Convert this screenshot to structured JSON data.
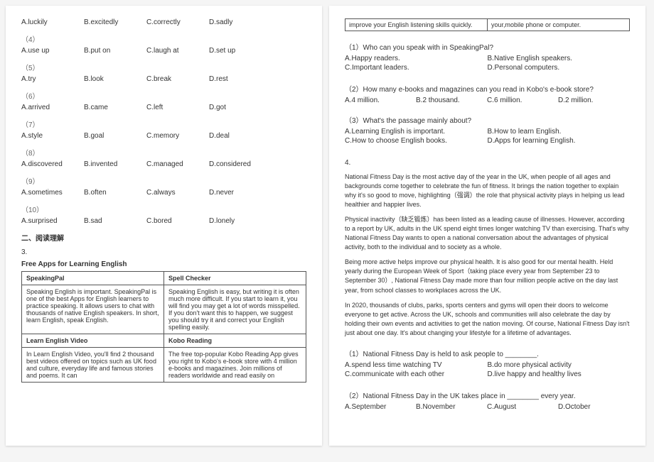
{
  "left": {
    "mcq": [
      {
        "n": "",
        "opts": [
          "A.luckily",
          "B.excitedly",
          "C.correctly",
          "D.sadly"
        ]
      },
      {
        "n": "（4）",
        "opts": [
          "A.use up",
          "B.put on",
          "C.laugh at",
          "D.set up"
        ]
      },
      {
        "n": "（5）",
        "opts": [
          "A.try",
          "B.look",
          "C.break",
          "D.rest"
        ]
      },
      {
        "n": "（6）",
        "opts": [
          "A.arrived",
          "B.came",
          "C.left",
          "D.got"
        ]
      },
      {
        "n": "（7）",
        "opts": [
          "A.style",
          "B.goal",
          "C.memory",
          "D.deal"
        ]
      },
      {
        "n": "（8）",
        "opts": [
          "A.discovered",
          "B.invented",
          "C.managed",
          "D.considered"
        ]
      },
      {
        "n": "（9）",
        "opts": [
          "A.sometimes",
          "B.often",
          "C.always",
          "D.never"
        ]
      },
      {
        "n": "（10）",
        "opts": [
          "A.surprised",
          "B.sad",
          "C.bored",
          "D.lonely"
        ]
      }
    ],
    "section2": "二、阅读理解",
    "q3": "3.",
    "appsTitle": "Free Apps for Learning English",
    "apps": [
      {
        "l_h": "SpeakingPal",
        "l_b": "Speaking English is important. SpeakingPal is one of the best Apps for English learners to practice speaking. It allows users to chat with thousands of native English speakers. In short, learn English, speak English.",
        "r_h": "Spell Checker",
        "r_b": "Speaking English is easy, but writing it is often much more difficult. If you start to learn it, you will find you may get a lot of words misspelled. If you don't want this to happen, we suggest you should try it and correct your English spelling easily."
      },
      {
        "l_h": "Learn English Video",
        "l_b": "In Learn English Video, you'll find 2 thousand best videos offered on topics such as UK food and culture, everyday life and famous stories and poems. It can",
        "r_h": "Kobo Reading",
        "r_b": "The free top-popular Kobo Reading App gives you right to Kobo's e-book store with 4 million e-books and magazines. Join millions of readers worldwide and read easily on"
      }
    ]
  },
  "right": {
    "toprow": {
      "l": "improve your English listening skills quickly.",
      "r": "your,mobile phone or computer."
    },
    "sub1": {
      "q": "（1）Who can you speak with in SpeakingPal?",
      "opts": [
        "A.Happy readers.",
        "B.Native English speakers.",
        "C.Important leaders.",
        "D.Personal computers."
      ]
    },
    "sub2": {
      "q": "（2）How many e-books and magazines can you read in Kobo's e-book store?",
      "opts": [
        "A.4 million.",
        "B.2 thousand.",
        "C.6 million.",
        "D.2 million."
      ]
    },
    "sub3": {
      "q": "（3）What's the passage mainly about?",
      "opts": [
        "A.Learning English is important.",
        "B.How to learn English.",
        "C.How to choose English books.",
        "D.Apps for learning English."
      ]
    },
    "q4": "4.",
    "p1": "National Fitness Day is the most active day of the year in the UK, when people of all ages and backgrounds come together to celebrate the fun of fitness. It brings the nation together to explain why it's so good to move, highlighting（强调）the role that physical activity plays in helping us lead healthier and happier lives.",
    "p2": "Physical inactivity（缺乏锻炼）has been listed as a leading cause of illnesses. However, according to a report by UK, adults in the UK spend eight times longer watching TV than exercising. That's why National Fitness Day wants to open a national conversation about the advantages of physical activity, both to the individual and to society as a whole.",
    "p3": "Being more active helps improve our physical health. It is also good for our mental health. Held yearly during the European Week of Sport（taking place every year from September 23 to September 30）, National Fitness Day made more than four million people active on the day last year, from school classes to workplaces across the UK.",
    "p4": "In 2020, thousands of clubs, parks, sports centers and gyms will open their doors to welcome everyone to get active. Across the UK, schools and communities will also celebrate the day by holding their own events and activities to get the nation moving. Of course, National Fitness Day isn't just about one day. It's about changing your lifestyle for a lifetime of advantages.",
    "r1": {
      "q": "（1）National Fitness Day is held to ask people to ________.",
      "opts": [
        "A.spend less time watching TV",
        "B.do more physical activity",
        "C.communicate with each other",
        "D.live happy and healthy lives"
      ]
    },
    "r2": {
      "q": "（2）National Fitness Day in the UK takes place in ________ every year.",
      "opts": [
        "A.September",
        "B.November",
        "C.August",
        "D.October"
      ]
    }
  }
}
